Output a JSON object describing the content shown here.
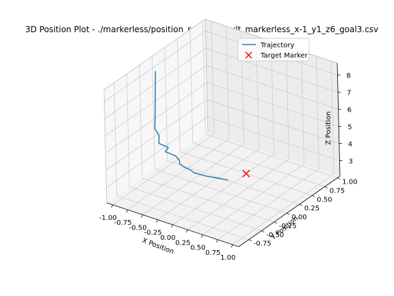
{
  "chart_data": {
    "type": "line",
    "projection": "3d",
    "title": "3D Position Plot - ./markerless/position_results/result_markerless_x-1_y1_z6_goal3.csv",
    "xlabel": "X Position",
    "ylabel": "Y Position",
    "zlabel": "Z Position",
    "xlim": [
      -1.1,
      1.1
    ],
    "ylim": [
      -0.95,
      1.05
    ],
    "zlim": [
      2.1,
      8.7
    ],
    "xticks": [
      "-1.00",
      "-0.75",
      "-0.50",
      "-0.25",
      "0.00",
      "0.25",
      "0.50",
      "0.75",
      "1.00"
    ],
    "yticks": [
      "-0.75",
      "-0.50",
      "-0.25",
      "0.00",
      "0.25",
      "0.50",
      "0.75",
      "1.00"
    ],
    "zticks": [
      "3",
      "4",
      "5",
      "6",
      "7",
      "8"
    ],
    "grid": true,
    "legend_position": "upper-right",
    "series": [
      {
        "name": "Trajectory",
        "color": "#1f77b4",
        "type": "line",
        "points": [
          [
            -0.92,
            -0.15,
            8.35
          ],
          [
            -0.93,
            -0.15,
            7.2
          ],
          [
            -0.95,
            -0.14,
            5.9
          ],
          [
            -0.97,
            -0.13,
            4.9
          ],
          [
            -0.92,
            -0.11,
            4.5
          ],
          [
            -0.95,
            -0.08,
            3.95
          ],
          [
            -0.82,
            -0.05,
            3.8
          ],
          [
            -0.9,
            -0.02,
            3.4
          ],
          [
            -0.75,
            0.0,
            3.3
          ],
          [
            -0.7,
            0.02,
            3.05
          ],
          [
            -0.72,
            0.05,
            2.75
          ],
          [
            -0.67,
            0.08,
            2.55
          ],
          [
            -0.58,
            0.1,
            2.45
          ],
          [
            -0.55,
            0.12,
            2.3
          ],
          [
            -0.4,
            0.18,
            2.15
          ],
          [
            -0.1,
            0.26,
            2.1
          ]
        ]
      },
      {
        "name": "Target Marker",
        "color": "#ff0000",
        "type": "scatter",
        "marker": "x",
        "points": [
          [
            0.0,
            0.5,
            2.1
          ]
        ]
      }
    ]
  }
}
